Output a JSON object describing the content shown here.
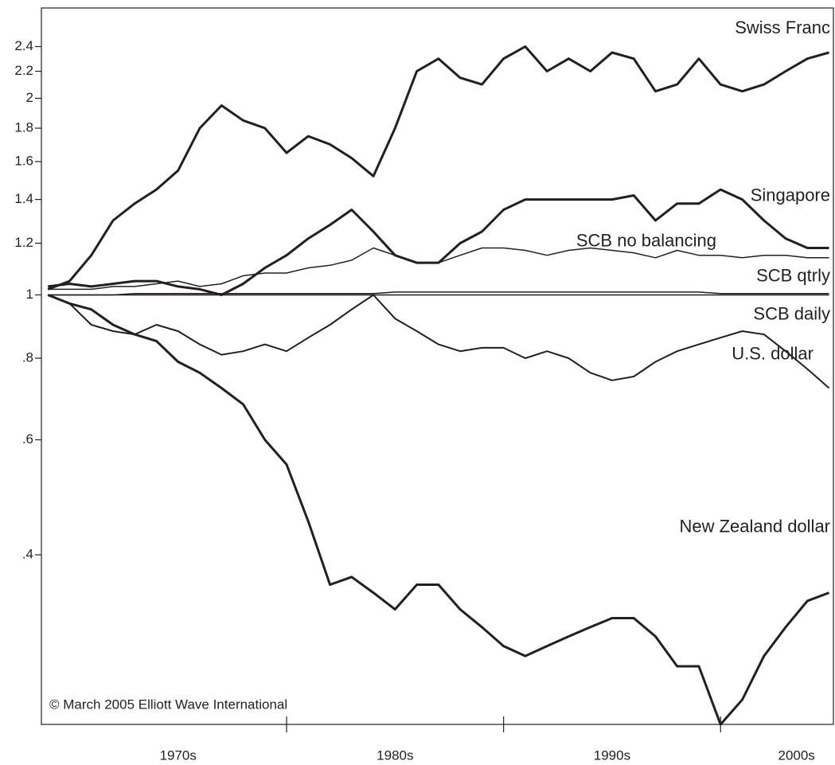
{
  "chart_data": {
    "type": "line",
    "yscale": "log",
    "annotation": "© March 2005 Elliott Wave International",
    "x": [
      1969,
      1970,
      1971,
      1972,
      1973,
      1974,
      1975,
      1976,
      1977,
      1978,
      1979,
      1980,
      1981,
      1982,
      1983,
      1984,
      1985,
      1986,
      1987,
      1988,
      1989,
      1990,
      1991,
      1992,
      1993,
      1994,
      1995,
      1996,
      1997,
      1998,
      1999,
      2000,
      2001,
      2002,
      2003,
      2004,
      2005
    ],
    "xlim": [
      1968.7,
      2005.2
    ],
    "xticks": [
      {
        "value": 1975,
        "label": "1970s"
      },
      {
        "value": 1985,
        "label": "1980s"
      },
      {
        "value": 1995,
        "label": "1990s"
      },
      {
        "value": 2003.5,
        "label": "2000s"
      }
    ],
    "xtick_marks": [
      1980,
      1990,
      2000
    ],
    "ylim": [
      0.22,
      2.75
    ],
    "yticks": [
      {
        "value": 0.4,
        "label": ".4"
      },
      {
        "value": 0.6,
        "label": ".6"
      },
      {
        "value": 0.8,
        "label": ".8"
      },
      1,
      1.2,
      1.4,
      1.6,
      1.8,
      2,
      2.2,
      2.4
    ],
    "series": [
      {
        "name": "Swiss Franc",
        "color": "#231f20",
        "values": [
          1.02,
          1.05,
          1.15,
          1.3,
          1.38,
          1.45,
          1.55,
          1.8,
          1.95,
          1.85,
          1.8,
          1.65,
          1.75,
          1.7,
          1.62,
          1.52,
          1.8,
          2.2,
          2.3,
          2.15,
          2.1,
          2.3,
          2.4,
          2.2,
          2.3,
          2.2,
          2.35,
          2.3,
          2.05,
          2.1,
          2.3,
          2.1,
          2.05,
          2.1,
          2.2,
          2.3,
          2.35
        ]
      },
      {
        "name": "Singapore",
        "color": "#231f20",
        "values": [
          1.03,
          1.04,
          1.03,
          1.04,
          1.05,
          1.05,
          1.03,
          1.02,
          1.0,
          1.04,
          1.1,
          1.15,
          1.22,
          1.28,
          1.35,
          1.25,
          1.15,
          1.12,
          1.12,
          1.2,
          1.25,
          1.35,
          1.4,
          1.4,
          1.4,
          1.4,
          1.4,
          1.42,
          1.3,
          1.38,
          1.38,
          1.45,
          1.4,
          1.3,
          1.22,
          1.18,
          1.18
        ]
      },
      {
        "name": "SCB no balancing",
        "color": "#231f20",
        "values": [
          1.02,
          1.02,
          1.02,
          1.03,
          1.03,
          1.04,
          1.05,
          1.03,
          1.04,
          1.07,
          1.08,
          1.08,
          1.1,
          1.11,
          1.13,
          1.18,
          1.15,
          1.12,
          1.12,
          1.15,
          1.18,
          1.18,
          1.17,
          1.15,
          1.17,
          1.18,
          1.17,
          1.16,
          1.14,
          1.17,
          1.15,
          1.15,
          1.14,
          1.15,
          1.15,
          1.14,
          1.14
        ]
      },
      {
        "name": "SCB qtrly",
        "color": "#231f20",
        "values": [
          1.0,
          1.0,
          1.0,
          1.0,
          1.005,
          1.005,
          1.005,
          1.005,
          1.005,
          1.005,
          1.005,
          1.005,
          1.005,
          1.005,
          1.005,
          1.005,
          1.01,
          1.01,
          1.01,
          1.01,
          1.01,
          1.01,
          1.01,
          1.01,
          1.01,
          1.01,
          1.01,
          1.01,
          1.01,
          1.01,
          1.01,
          1.005,
          1.005,
          1.005,
          1.005,
          1.005,
          1.005
        ]
      },
      {
        "name": "SCB daily",
        "color": "#231f20",
        "values": [
          1.0,
          1.0,
          1.0,
          1.0,
          1.0,
          1.0,
          1.0,
          1.0,
          1.0,
          1.0,
          1.0,
          1.0,
          1.0,
          1.0,
          1.0,
          1.0,
          1.0,
          1.0,
          1.0,
          1.0,
          1.0,
          1.0,
          1.0,
          1.0,
          1.0,
          1.0,
          1.0,
          1.0,
          1.0,
          1.0,
          1.0,
          1.0,
          1.0,
          1.0,
          1.0,
          1.0,
          1.0
        ]
      },
      {
        "name": "U.S. dollar",
        "color": "#231f20",
        "values": [
          1.0,
          0.97,
          0.9,
          0.88,
          0.87,
          0.9,
          0.88,
          0.84,
          0.81,
          0.82,
          0.84,
          0.82,
          0.86,
          0.9,
          0.95,
          1.0,
          0.92,
          0.88,
          0.84,
          0.82,
          0.83,
          0.83,
          0.8,
          0.82,
          0.8,
          0.76,
          0.74,
          0.75,
          0.79,
          0.82,
          0.84,
          0.86,
          0.88,
          0.87,
          0.82,
          0.77,
          0.72
        ]
      },
      {
        "name": "New Zealand dollar",
        "color": "#231f20",
        "values": [
          1.0,
          0.97,
          0.95,
          0.9,
          0.87,
          0.85,
          0.79,
          0.76,
          0.72,
          0.68,
          0.6,
          0.55,
          0.45,
          0.36,
          0.37,
          0.35,
          0.33,
          0.36,
          0.36,
          0.33,
          0.31,
          0.29,
          0.28,
          0.29,
          0.3,
          0.31,
          0.32,
          0.32,
          0.3,
          0.27,
          0.27,
          0.22,
          0.24,
          0.28,
          0.31,
          0.34,
          0.35
        ]
      }
    ]
  }
}
